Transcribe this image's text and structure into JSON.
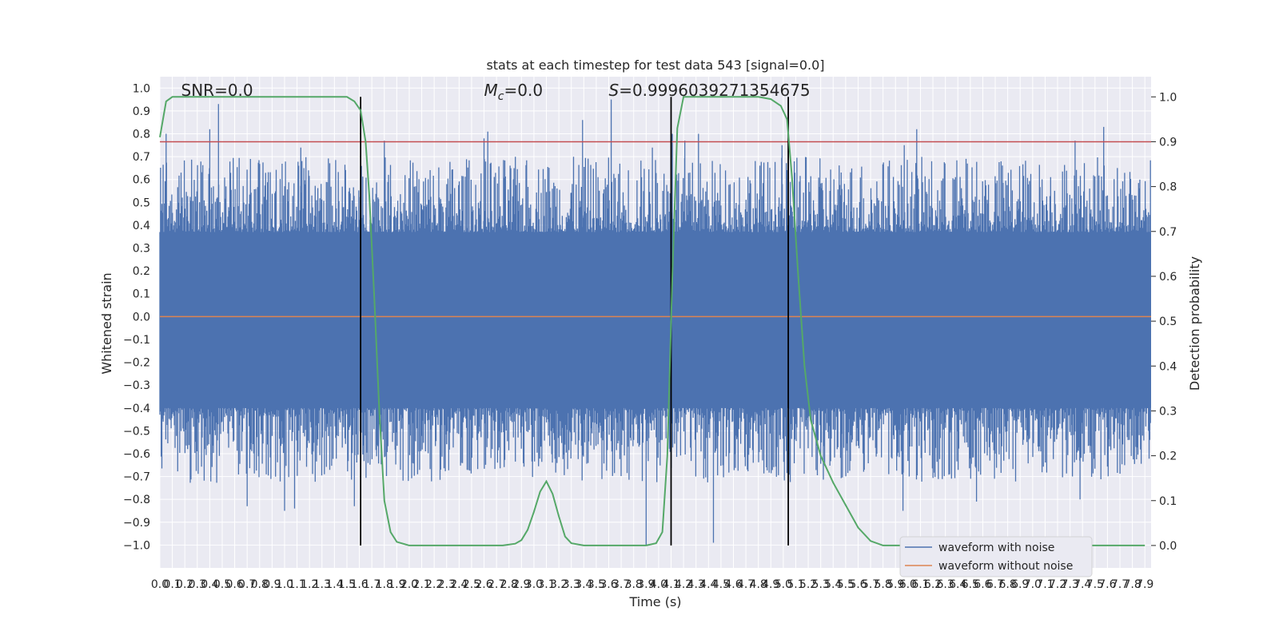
{
  "chart_data": {
    "type": "line",
    "title": "stats at each timestep for test data 543 [signal=0.0]",
    "xlabel": "Time (s)",
    "ylabel_left": "Whitened strain",
    "ylabel_right": "Detection probability",
    "xlim": [
      0.0,
      7.95
    ],
    "ylim_left": [
      -1.1,
      1.05
    ],
    "ylim_right": [
      -0.05,
      1.045
    ],
    "x_ticks": [
      0.0,
      0.1,
      0.2,
      0.3,
      0.4,
      0.5,
      0.6,
      0.7,
      0.8,
      0.9,
      1.0,
      1.1,
      1.2,
      1.3,
      1.4,
      1.5,
      1.6,
      1.7,
      1.8,
      1.9,
      2.0,
      2.1,
      2.2,
      2.3,
      2.4,
      2.5,
      2.6,
      2.7,
      2.8,
      2.9,
      3.0,
      3.1,
      3.2,
      3.3,
      3.4,
      3.5,
      3.6,
      3.7,
      3.8,
      3.9,
      4.0,
      4.1,
      4.2,
      4.3,
      4.4,
      4.5,
      4.6,
      4.7,
      4.8,
      4.9,
      5.0,
      5.1,
      5.2,
      5.3,
      5.4,
      5.5,
      5.6,
      5.7,
      5.8,
      5.9,
      6.0,
      6.1,
      6.2,
      6.3,
      6.4,
      6.5,
      6.6,
      6.7,
      6.8,
      6.9,
      7.0,
      7.1,
      7.2,
      7.3,
      7.4,
      7.5,
      7.6,
      7.7,
      7.8,
      7.9
    ],
    "x_tick_labels": [
      "0.0",
      "0.1",
      "0.2",
      "0.3",
      "0.4",
      "0.5",
      "0.6",
      "0.7",
      "0.8",
      "0.9",
      "1.0",
      "1.1",
      "1.2",
      "1.3",
      "1.4",
      "1.5",
      "1.6",
      "1.7",
      "1.8",
      "1.9",
      "2.0",
      "2.1",
      "2.2",
      "2.3",
      "2.4",
      "2.5",
      "2.6",
      "2.7",
      "2.8",
      "2.9",
      "3.0",
      "3.1",
      "3.2",
      "3.3",
      "3.4",
      "3.5",
      "3.6",
      "3.7",
      "3.8",
      "3.9",
      "4.0",
      "4.1",
      "4.2",
      "4.3",
      "4.4",
      "4.5",
      "4.6",
      "4.7",
      "4.8",
      "4.9",
      "5.0",
      "5.1",
      "5.2",
      "5.3",
      "5.4",
      "5.5",
      "5.6",
      "5.7",
      "5.8",
      "5.9",
      "6.0",
      "6.1",
      "6.2",
      "6.3",
      "6.4",
      "6.5",
      "6.6",
      "6.7",
      "6.8",
      "6.9",
      "7.0",
      "7.1",
      "7.2",
      "7.3",
      "7.4",
      "7.5",
      "7.6",
      "7.7",
      "7.8",
      "7.9"
    ],
    "y_left_ticks": [
      1.0,
      0.9,
      0.8,
      0.7,
      0.6,
      0.5,
      0.4,
      0.3,
      0.2,
      0.1,
      0.0,
      -0.1,
      -0.2,
      -0.3,
      -0.4,
      -0.5,
      -0.6,
      -0.7,
      -0.8,
      -0.9,
      -1.0
    ],
    "y_left_tick_labels": [
      "1.0",
      "0.9",
      "0.8",
      "0.7",
      "0.6",
      "0.5",
      "0.4",
      "0.3",
      "0.2",
      "0.1",
      "0.0",
      "−0.1",
      "−0.2",
      "−0.3",
      "−0.4",
      "−0.5",
      "−0.6",
      "−0.7",
      "−0.8",
      "−0.9",
      "−1.0"
    ],
    "y_right_ticks": [
      1.0,
      0.9,
      0.8,
      0.7,
      0.6,
      0.5,
      0.4,
      0.3,
      0.2,
      0.1,
      0.0
    ],
    "y_right_tick_labels": [
      "1.0",
      "0.9",
      "0.8",
      "0.7",
      "0.6",
      "0.5",
      "0.4",
      "0.3",
      "0.2",
      "0.1",
      "0.0"
    ],
    "threshold": 0.9,
    "noise_waveform": {
      "name": "waveform with noise",
      "color": "#4c72b0",
      "dense_band": [
        -0.4,
        0.37
      ],
      "peaks_pos": [
        [
          0.05,
          0.8
        ],
        [
          0.17,
          0.63
        ],
        [
          0.4,
          0.82
        ],
        [
          0.47,
          0.93
        ],
        [
          1.13,
          0.74
        ],
        [
          1.8,
          0.77
        ],
        [
          2.6,
          0.78
        ],
        [
          2.63,
          0.81
        ],
        [
          3.39,
          0.86
        ],
        [
          3.62,
          0.95
        ],
        [
          3.95,
          0.74
        ],
        [
          4.11,
          0.8
        ],
        [
          4.21,
          0.77
        ],
        [
          4.32,
          0.8
        ],
        [
          4.99,
          0.75
        ],
        [
          5.97,
          0.75
        ],
        [
          6.07,
          0.82
        ],
        [
          7.34,
          0.77
        ],
        [
          7.57,
          0.83
        ]
      ],
      "peaks_neg": [
        [
          0.7,
          -0.83
        ],
        [
          1.0,
          -0.85
        ],
        [
          1.08,
          -0.84
        ],
        [
          1.56,
          -0.83
        ],
        [
          3.9,
          -1.0
        ],
        [
          4.44,
          -0.99
        ],
        [
          5.96,
          -0.85
        ],
        [
          6.55,
          -0.81
        ],
        [
          7.38,
          -0.8
        ]
      ]
    },
    "clean_waveform": {
      "name": "waveform without noise",
      "color": "#dd8452",
      "value": 0.0
    },
    "detection_probability": {
      "color": "#55a868",
      "points": [
        [
          0.0,
          0.91
        ],
        [
          0.05,
          0.99
        ],
        [
          0.1,
          1.0
        ],
        [
          1.5,
          1.0
        ],
        [
          1.56,
          0.99
        ],
        [
          1.61,
          0.97
        ],
        [
          1.65,
          0.9
        ],
        [
          1.68,
          0.78
        ],
        [
          1.72,
          0.55
        ],
        [
          1.76,
          0.3
        ],
        [
          1.8,
          0.1
        ],
        [
          1.85,
          0.03
        ],
        [
          1.9,
          0.008
        ],
        [
          2.0,
          0.0
        ],
        [
          2.75,
          0.0
        ],
        [
          2.85,
          0.004
        ],
        [
          2.9,
          0.012
        ],
        [
          2.95,
          0.035
        ],
        [
          3.0,
          0.075
        ],
        [
          3.05,
          0.12
        ],
        [
          3.1,
          0.143
        ],
        [
          3.15,
          0.115
        ],
        [
          3.2,
          0.065
        ],
        [
          3.25,
          0.02
        ],
        [
          3.3,
          0.005
        ],
        [
          3.4,
          0.0
        ],
        [
          3.9,
          0.0
        ],
        [
          3.98,
          0.005
        ],
        [
          4.03,
          0.03
        ],
        [
          4.07,
          0.2
        ],
        [
          4.11,
          0.6
        ],
        [
          4.15,
          0.93
        ],
        [
          4.2,
          1.0
        ],
        [
          4.8,
          1.0
        ],
        [
          4.9,
          0.995
        ],
        [
          4.98,
          0.98
        ],
        [
          5.03,
          0.95
        ],
        [
          5.07,
          0.82
        ],
        [
          5.12,
          0.6
        ],
        [
          5.17,
          0.4
        ],
        [
          5.22,
          0.28
        ],
        [
          5.3,
          0.2
        ],
        [
          5.4,
          0.14
        ],
        [
          5.5,
          0.09
        ],
        [
          5.6,
          0.04
        ],
        [
          5.7,
          0.01
        ],
        [
          5.8,
          0.0
        ],
        [
          7.9,
          0.0
        ]
      ]
    },
    "vertical_lines_x": [
      1.61,
      4.1,
      5.04
    ],
    "annotations": [
      {
        "text": "SNR=0.0",
        "x": 0.17
      },
      {
        "text_main": "M",
        "text_sub": "c",
        "text_rest": "=0.0",
        "x": 2.6
      },
      {
        "text_main": "S",
        "text_rest": "=0.9996039271354675",
        "x": 3.6
      }
    ],
    "legend": {
      "location": "lower-right",
      "entries": [
        "waveform with noise",
        "waveform without noise"
      ]
    },
    "grid": true,
    "colors": {
      "background": "#eaeaf2",
      "grid": "#ffffff",
      "threshold": "#c44e52",
      "vline": "#000000"
    }
  }
}
